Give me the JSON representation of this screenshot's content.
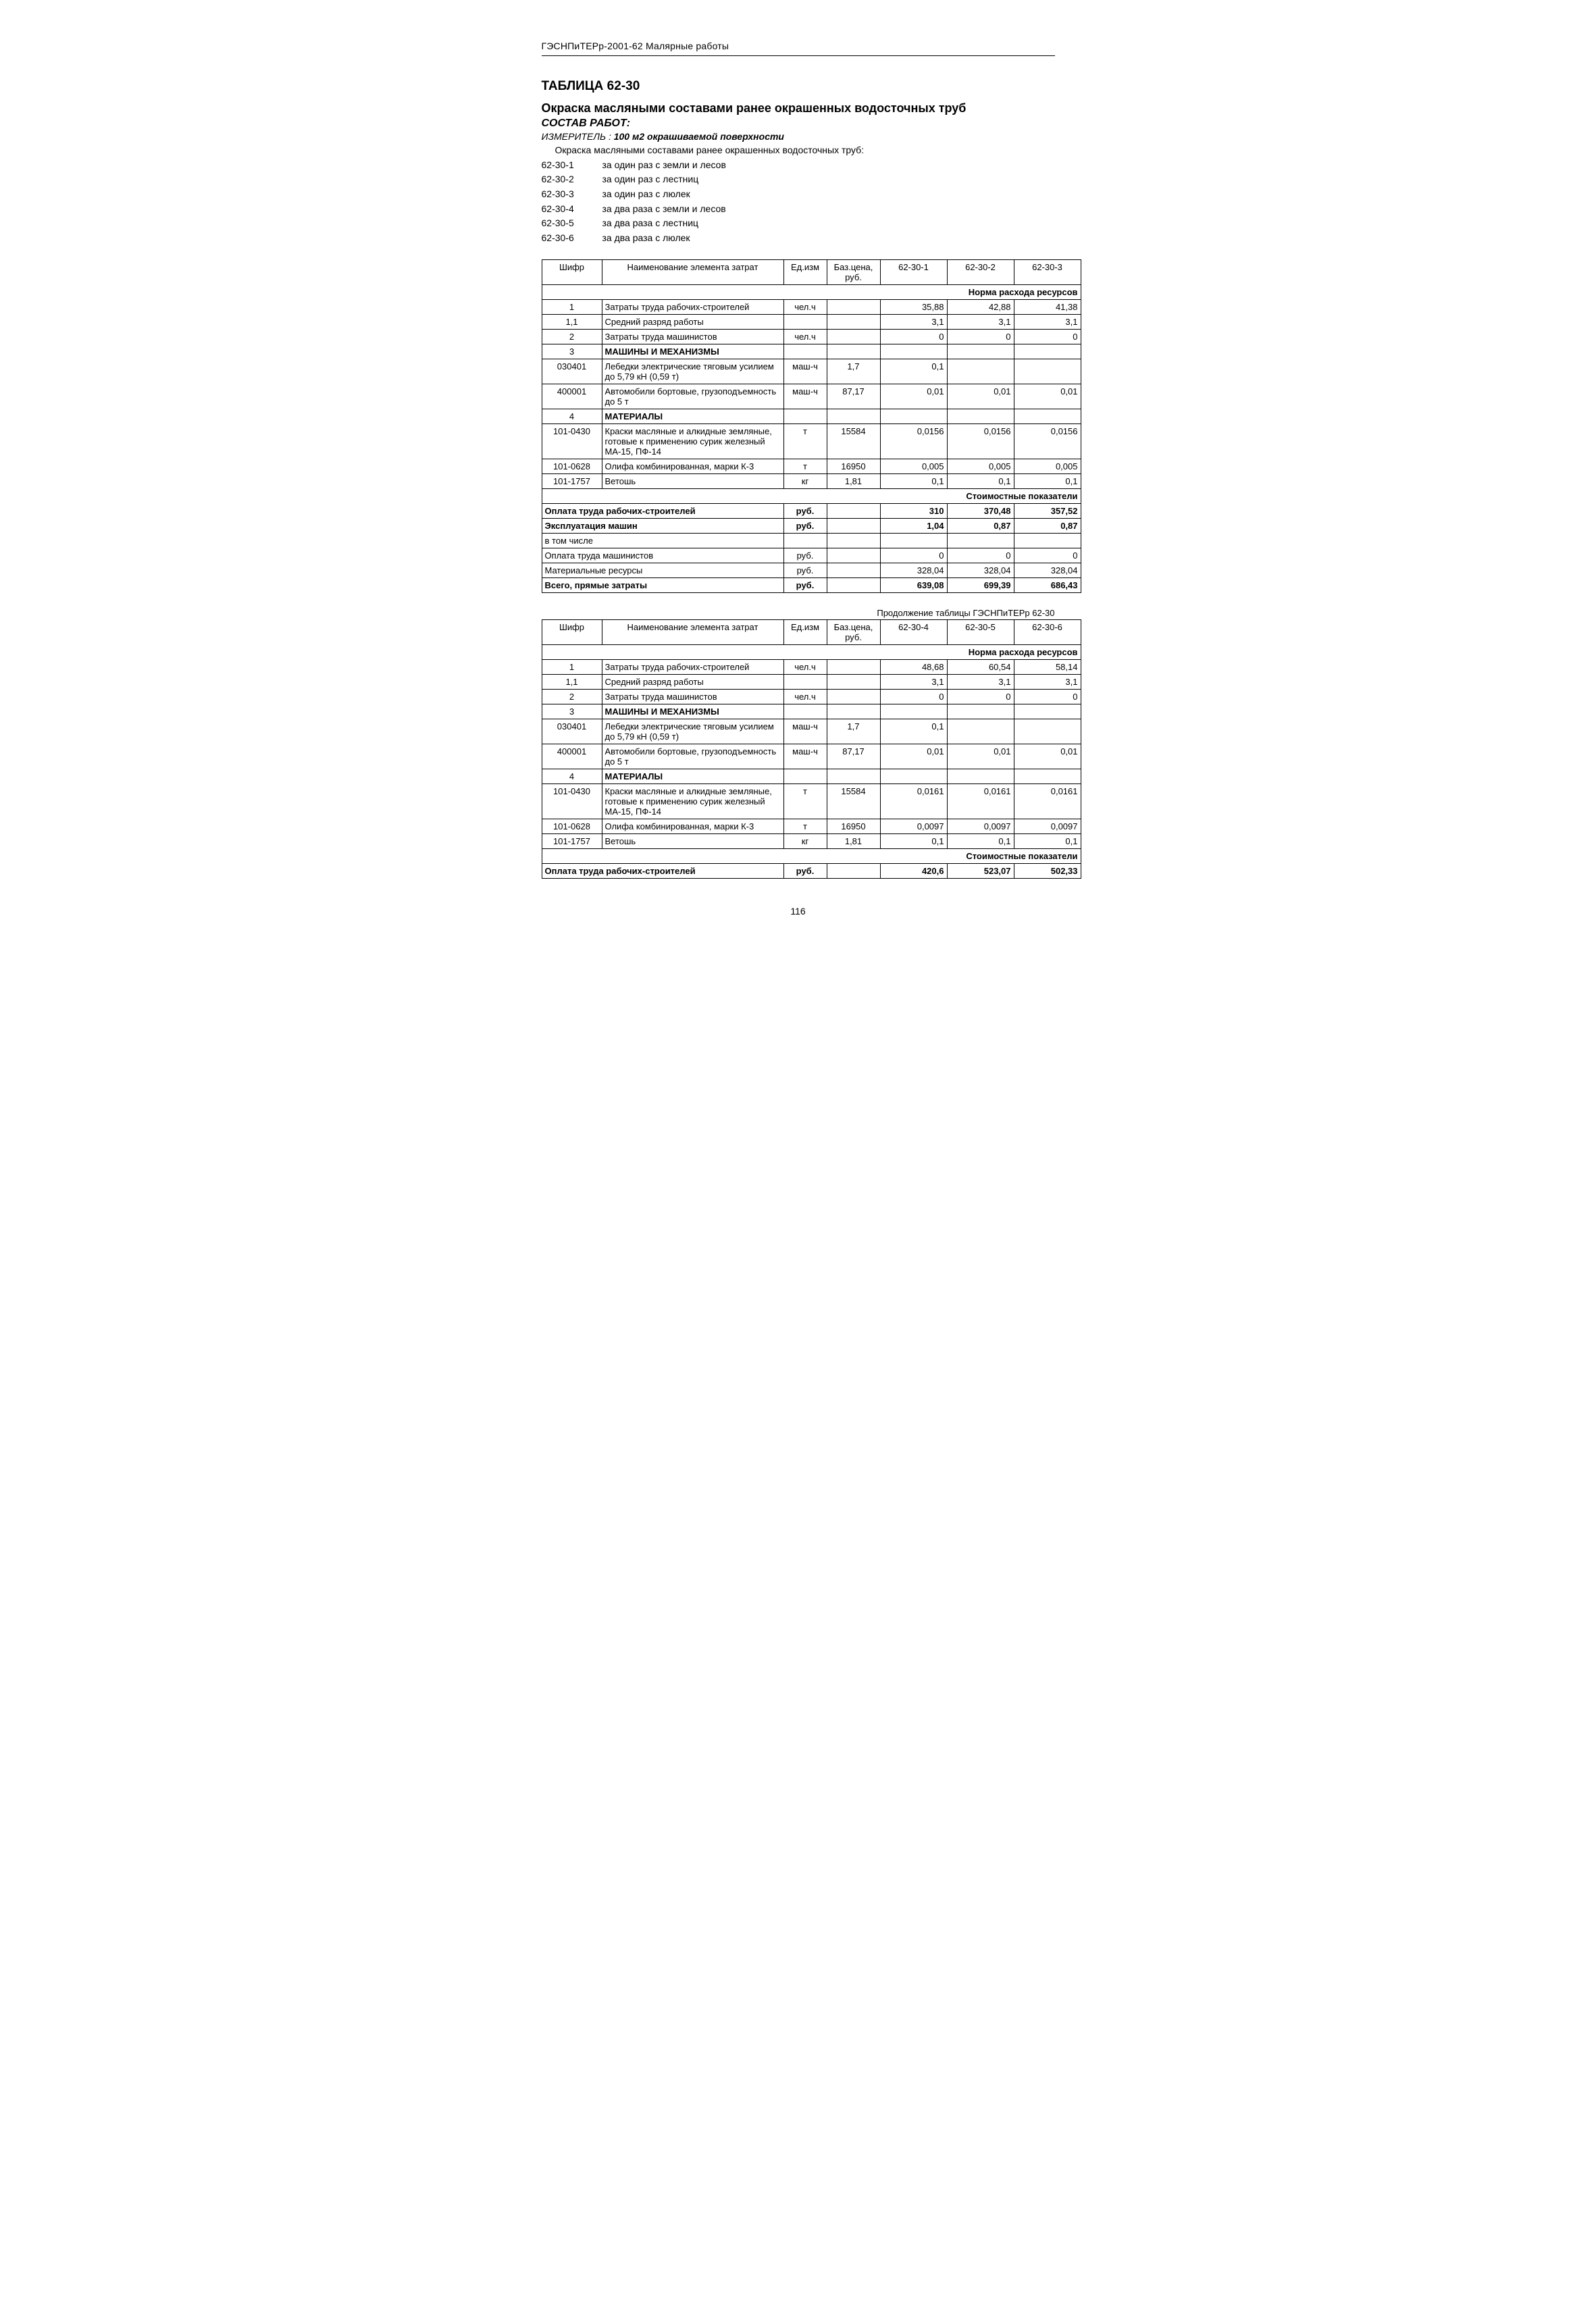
{
  "header": "ГЭСНПиТЕРр-2001-62 Малярные работы",
  "table_number": "ТАБЛИЦА 62-30",
  "table_title": "Окраска масляными составами ранее окрашенных водосточных труб",
  "works_label": "СОСТАВ РАБОТ:",
  "measure_label": "ИЗМЕРИТЕЛЬ :",
  "measure_value": "100 м2 окрашиваемой поверхности",
  "intro": "Окраска масляными составами ранее окрашенных водосточных труб:",
  "variants": [
    {
      "code": "62-30-1",
      "text": "за один раз с земли и лесов"
    },
    {
      "code": "62-30-2",
      "text": "за один раз с лестниц"
    },
    {
      "code": "62-30-3",
      "text": "за один раз с люлек"
    },
    {
      "code": "62-30-4",
      "text": "за два раза с земли и лесов"
    },
    {
      "code": "62-30-5",
      "text": "за два раза с лестниц"
    },
    {
      "code": "62-30-6",
      "text": "за два раза с люлек"
    }
  ],
  "colhdr": {
    "code": "Шифр",
    "name": "Наименование элемента затрат",
    "unit": "Ед.изм",
    "price": "Баз.цена, руб."
  },
  "section_labels": {
    "norms": "Норма расхода ресурсов",
    "costs": "Стоимостные показатели"
  },
  "continuation": "Продолжение таблицы ГЭСНПиТЕРр 62-30",
  "page_number": "116",
  "t1": {
    "cols": [
      "62-30-1",
      "62-30-2",
      "62-30-3"
    ],
    "rows": [
      {
        "code": "1",
        "name": "Затраты труда рабочих-строителей",
        "unit": "чел.ч",
        "price": "",
        "v": [
          "35,88",
          "42,88",
          "41,38"
        ]
      },
      {
        "code": "1,1",
        "name": "Средний разряд работы",
        "unit": "",
        "price": "",
        "v": [
          "3,1",
          "3,1",
          "3,1"
        ]
      },
      {
        "code": "2",
        "name": "Затраты труда машинистов",
        "unit": "чел.ч",
        "price": "",
        "v": [
          "0",
          "0",
          "0"
        ]
      },
      {
        "code": "3",
        "name": "МАШИНЫ И МЕХАНИЗМЫ",
        "unit": "",
        "price": "",
        "v": [
          "",
          "",
          ""
        ],
        "bold": true
      },
      {
        "code": "030401",
        "name": "Лебедки электрические тяговым усилием до 5,79 кН (0,59 т)",
        "unit": "маш-ч",
        "price": "1,7",
        "v": [
          "0,1",
          "",
          ""
        ]
      },
      {
        "code": "400001",
        "name": "Автомобили бортовые, грузоподъемность до 5 т",
        "unit": "маш-ч",
        "price": "87,17",
        "v": [
          "0,01",
          "0,01",
          "0,01"
        ]
      },
      {
        "code": "4",
        "name": "МАТЕРИАЛЫ",
        "unit": "",
        "price": "",
        "v": [
          "",
          "",
          ""
        ],
        "bold": true
      },
      {
        "code": "101-0430",
        "name": "Краски масляные и алкидные земляные, готовые к применению сурик железный МА-15, ПФ-14",
        "unit": "т",
        "price": "15584",
        "v": [
          "0,0156",
          "0,0156",
          "0,0156"
        ]
      },
      {
        "code": "101-0628",
        "name": "Олифа комбинированная, марки К-3",
        "unit": "т",
        "price": "16950",
        "v": [
          "0,005",
          "0,005",
          "0,005"
        ]
      },
      {
        "code": "101-1757",
        "name": "Ветошь",
        "unit": "кг",
        "price": "1,81",
        "v": [
          "0,1",
          "0,1",
          "0,1"
        ]
      }
    ],
    "cost_rows": [
      {
        "name": "Оплата труда рабочих-строителей",
        "unit": "руб.",
        "v": [
          "310",
          "370,48",
          "357,52"
        ],
        "bold": true
      },
      {
        "name": "Эксплуатация машин",
        "unit": "руб.",
        "v": [
          "1,04",
          "0,87",
          "0,87"
        ],
        "bold": true
      },
      {
        "name": "в том числе",
        "unit": "",
        "v": [
          "",
          "",
          ""
        ],
        "bold": false
      },
      {
        "name": "Оплата труда машинистов",
        "unit": "руб.",
        "v": [
          "0",
          "0",
          "0"
        ],
        "bold": false
      },
      {
        "name": "Материальные ресурсы",
        "unit": "руб.",
        "v": [
          "328,04",
          "328,04",
          "328,04"
        ],
        "bold": false
      },
      {
        "name": "Всего, прямые затраты",
        "unit": "руб.",
        "v": [
          "639,08",
          "699,39",
          "686,43"
        ],
        "bold": true
      }
    ]
  },
  "t2": {
    "cols": [
      "62-30-4",
      "62-30-5",
      "62-30-6"
    ],
    "rows": [
      {
        "code": "1",
        "name": "Затраты труда рабочих-строителей",
        "unit": "чел.ч",
        "price": "",
        "v": [
          "48,68",
          "60,54",
          "58,14"
        ]
      },
      {
        "code": "1,1",
        "name": "Средний разряд работы",
        "unit": "",
        "price": "",
        "v": [
          "3,1",
          "3,1",
          "3,1"
        ]
      },
      {
        "code": "2",
        "name": "Затраты труда машинистов",
        "unit": "чел.ч",
        "price": "",
        "v": [
          "0",
          "0",
          "0"
        ]
      },
      {
        "code": "3",
        "name": "МАШИНЫ И МЕХАНИЗМЫ",
        "unit": "",
        "price": "",
        "v": [
          "",
          "",
          ""
        ],
        "bold": true
      },
      {
        "code": "030401",
        "name": "Лебедки электрические тяговым усилием до 5,79 кН (0,59 т)",
        "unit": "маш-ч",
        "price": "1,7",
        "v": [
          "0,1",
          "",
          ""
        ]
      },
      {
        "code": "400001",
        "name": "Автомобили бортовые, грузоподъемность до 5 т",
        "unit": "маш-ч",
        "price": "87,17",
        "v": [
          "0,01",
          "0,01",
          "0,01"
        ]
      },
      {
        "code": "4",
        "name": "МАТЕРИАЛЫ",
        "unit": "",
        "price": "",
        "v": [
          "",
          "",
          ""
        ],
        "bold": true
      },
      {
        "code": "101-0430",
        "name": "Краски масляные и алкидные земляные, готовые к применению сурик железный МА-15, ПФ-14",
        "unit": "т",
        "price": "15584",
        "v": [
          "0,0161",
          "0,0161",
          "0,0161"
        ]
      },
      {
        "code": "101-0628",
        "name": "Олифа комбинированная, марки К-3",
        "unit": "т",
        "price": "16950",
        "v": [
          "0,0097",
          "0,0097",
          "0,0097"
        ]
      },
      {
        "code": "101-1757",
        "name": "Ветошь",
        "unit": "кг",
        "price": "1,81",
        "v": [
          "0,1",
          "0,1",
          "0,1"
        ]
      }
    ],
    "cost_rows": [
      {
        "name": "Оплата труда рабочих-строителей",
        "unit": "руб.",
        "v": [
          "420,6",
          "523,07",
          "502,33"
        ],
        "bold": true
      }
    ]
  }
}
